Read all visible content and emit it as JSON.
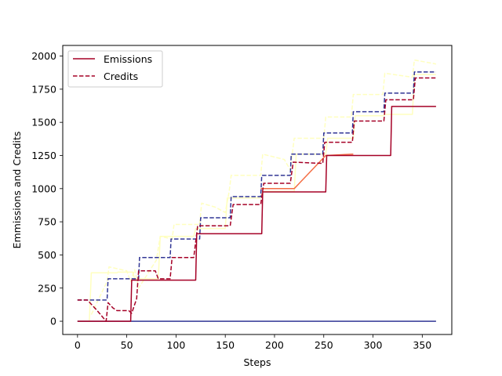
{
  "chart_data": {
    "type": "line",
    "title": "",
    "xlabel": "Steps",
    "ylabel": "Emmissions and Credits",
    "xlim": [
      -15,
      380
    ],
    "ylim": [
      -100,
      2080
    ],
    "xticks": [
      0,
      50,
      100,
      150,
      200,
      250,
      300,
      350
    ],
    "yticks": [
      0,
      250,
      500,
      750,
      1000,
      1250,
      1500,
      1750,
      2000
    ],
    "grid": false,
    "legend": {
      "placement": "top-left",
      "entries": [
        "Emissions",
        "Credits"
      ]
    },
    "series": [
      {
        "name": "Emissions",
        "color": "#a50026",
        "style": "solid",
        "x": [
          0,
          54,
          55,
          120,
          121,
          187,
          188,
          252,
          253,
          318,
          319,
          364
        ],
        "y": [
          0,
          0,
          310,
          310,
          660,
          660,
          975,
          975,
          1250,
          1250,
          1620,
          1620
        ]
      },
      {
        "name": "Credits",
        "color": "#a50026",
        "style": "dashed",
        "x": [
          0,
          10,
          20,
          29,
          31,
          36,
          40,
          52,
          55,
          60,
          62,
          79,
          82,
          94,
          96,
          118,
          122,
          155,
          158,
          186,
          189,
          216,
          219,
          249,
          251,
          279,
          281,
          311,
          313,
          341,
          343,
          364
        ],
        "y": [
          160,
          160,
          80,
          0,
          140,
          100,
          80,
          80,
          60,
          170,
          380,
          380,
          320,
          320,
          480,
          480,
          720,
          720,
          880,
          880,
          1040,
          1040,
          1200,
          1190,
          1350,
          1350,
          1510,
          1510,
          1670,
          1670,
          1835,
          1835
        ]
      },
      {
        "color": "#313695",
        "style": "dashed",
        "x": [
          0,
          30,
          31,
          62,
          63,
          94,
          95,
          124,
          125,
          155,
          156,
          186,
          187,
          216,
          217,
          249,
          250,
          279,
          280,
          311,
          312,
          341,
          342,
          364
        ],
        "y": [
          160,
          160,
          320,
          320,
          480,
          480,
          620,
          620,
          780,
          780,
          940,
          940,
          1100,
          1100,
          1260,
          1260,
          1420,
          1420,
          1580,
          1580,
          1720,
          1720,
          1880,
          1880
        ]
      },
      {
        "color": "#313695",
        "style": "solid",
        "x": [
          0,
          364
        ],
        "y": [
          0,
          0
        ]
      },
      {
        "color": "#f46d43",
        "style": "solid",
        "x": [
          186,
          220,
          252,
          280
        ],
        "y": [
          1000,
          1000,
          1250,
          1260
        ]
      },
      {
        "color": "#ffffbf",
        "style": "solid",
        "x": [
          0,
          12,
          14,
          40,
          41,
          56,
          58,
          82,
          84,
          118,
          120,
          150,
          152,
          186,
          188,
          220,
          222,
          252,
          254,
          280,
          282,
          310,
          312,
          340,
          342,
          364
        ],
        "y": [
          0,
          0,
          365,
          365,
          370,
          370,
          320,
          320,
          640,
          640,
          700,
          700,
          930,
          930,
          980,
          980,
          1260,
          1260,
          1380,
          1380,
          1550,
          1550,
          1560,
          1560,
          1860,
          1860
        ]
      },
      {
        "color": "#ffffbf",
        "style": "dashed",
        "x": [
          14,
          30,
          32,
          50,
          54,
          58,
          62,
          80,
          84,
          96,
          98,
          124,
          126,
          140,
          150,
          154,
          156,
          186,
          188,
          210,
          216,
          220,
          222,
          250,
          252,
          278,
          280,
          310,
          312,
          340,
          342,
          364
        ],
        "y": [
          50,
          300,
          410,
          380,
          300,
          390,
          250,
          460,
          640,
          620,
          730,
          730,
          890,
          860,
          820,
          980,
          1100,
          1100,
          1260,
          1220,
          1140,
          1380,
          1380,
          1380,
          1540,
          1540,
          1710,
          1710,
          1870,
          1840,
          1970,
          1940
        ]
      }
    ]
  }
}
